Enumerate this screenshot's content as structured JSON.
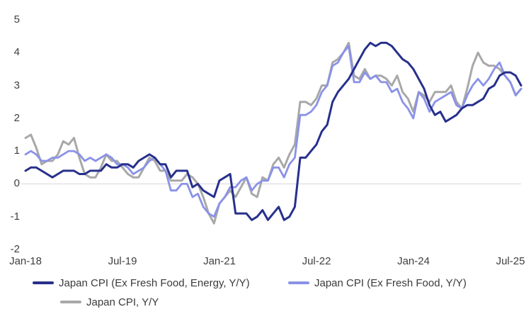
{
  "chart_data": {
    "type": "line",
    "title": "",
    "xlabel": "",
    "ylabel": "",
    "x_unit": "month",
    "x_start": "2018-01",
    "x_end": "2025-09",
    "ylim": [
      -2,
      5
    ],
    "y_ticks": [
      5,
      4,
      3,
      2,
      1,
      0,
      -1,
      -2
    ],
    "x_ticks": [
      {
        "label": "Jan-18",
        "index": 0
      },
      {
        "label": "Jul-19",
        "index": 18
      },
      {
        "label": "Jan-21",
        "index": 36
      },
      {
        "label": "Jul-22",
        "index": 54
      },
      {
        "label": "Jan-24",
        "index": 72
      },
      {
        "label": "Jul-25",
        "index": 90
      }
    ],
    "grid": "zero-line-only",
    "zero_line_color": "#d6d6d6",
    "legend_position": "bottom",
    "axis_text_color": "#3f3f3f",
    "series": [
      {
        "name": "Japan CPI (Ex Fresh Food, Energy, Y/Y)",
        "color": "#27308c",
        "line_width": 3,
        "values": [
          0.4,
          0.5,
          0.5,
          0.4,
          0.3,
          0.2,
          0.3,
          0.4,
          0.4,
          0.4,
          0.3,
          0.3,
          0.4,
          0.4,
          0.4,
          0.6,
          0.5,
          0.5,
          0.6,
          0.6,
          0.5,
          0.7,
          0.8,
          0.9,
          0.8,
          0.6,
          0.6,
          0.2,
          0.4,
          0.4,
          0.4,
          -0.1,
          0.0,
          -0.2,
          -0.3,
          -0.4,
          0.1,
          0.2,
          0.3,
          -0.9,
          -0.9,
          -0.9,
          -1.1,
          -1.0,
          -0.8,
          -1.1,
          -0.9,
          -0.7,
          -1.1,
          -1.0,
          -0.7,
          0.8,
          0.8,
          1.0,
          1.2,
          1.6,
          1.8,
          2.5,
          2.8,
          3.0,
          3.2,
          3.5,
          3.8,
          4.1,
          4.3,
          4.2,
          4.3,
          4.3,
          4.2,
          4.0,
          3.8,
          3.7,
          3.5,
          3.2,
          2.9,
          2.4,
          2.1,
          2.2,
          1.9,
          2.0,
          2.1,
          2.3,
          2.4,
          2.4,
          2.5,
          2.6,
          2.9,
          3.0,
          3.3,
          3.4,
          3.4,
          3.3,
          3.0
        ]
      },
      {
        "name": "Japan CPI (Ex Fresh Food, Y/Y)",
        "color": "#8a92e8",
        "line_width": 2.8,
        "values": [
          0.9,
          1.0,
          0.9,
          0.7,
          0.7,
          0.8,
          0.8,
          0.9,
          1.0,
          1.0,
          0.9,
          0.7,
          0.8,
          0.7,
          0.8,
          0.9,
          0.8,
          0.6,
          0.6,
          0.5,
          0.3,
          0.4,
          0.5,
          0.7,
          0.8,
          0.6,
          0.4,
          -0.2,
          -0.2,
          0.0,
          0.0,
          -0.4,
          -0.3,
          -0.7,
          -0.9,
          -1.0,
          -0.6,
          -0.4,
          -0.1,
          -0.1,
          0.1,
          0.2,
          -0.2,
          0.0,
          0.1,
          0.1,
          0.5,
          0.5,
          0.2,
          0.6,
          0.8,
          2.1,
          2.1,
          2.2,
          2.4,
          2.8,
          3.0,
          3.6,
          3.7,
          4.0,
          4.2,
          3.1,
          3.1,
          3.4,
          3.2,
          3.3,
          3.1,
          3.1,
          2.8,
          2.9,
          2.5,
          2.3,
          2.0,
          2.8,
          2.6,
          2.2,
          2.5,
          2.6,
          2.7,
          2.8,
          2.4,
          2.3,
          2.7,
          3.0,
          3.2,
          3.0,
          3.2,
          3.5,
          3.7,
          3.3,
          3.1,
          2.7,
          2.9
        ]
      },
      {
        "name": "Japan CPI, Y/Y",
        "color": "#a8a8a8",
        "line_width": 3,
        "values": [
          1.4,
          1.5,
          1.1,
          0.6,
          0.7,
          0.7,
          0.9,
          1.3,
          1.2,
          1.4,
          0.8,
          0.3,
          0.2,
          0.2,
          0.5,
          0.9,
          0.7,
          0.7,
          0.5,
          0.3,
          0.2,
          0.2,
          0.5,
          0.8,
          0.7,
          0.4,
          0.4,
          0.1,
          0.1,
          0.1,
          0.3,
          0.2,
          0.0,
          -0.4,
          -0.9,
          -1.2,
          -0.6,
          -0.4,
          -0.2,
          -0.4,
          -0.1,
          0.2,
          -0.3,
          -0.4,
          0.2,
          0.1,
          0.6,
          0.8,
          0.5,
          0.9,
          1.2,
          2.5,
          2.5,
          2.4,
          2.6,
          3.0,
          3.0,
          3.7,
          3.8,
          4.0,
          4.3,
          3.3,
          3.2,
          3.5,
          3.2,
          3.3,
          3.3,
          3.2,
          3.0,
          3.3,
          2.8,
          2.6,
          2.2,
          2.8,
          2.7,
          2.5,
          2.8,
          2.8,
          2.8,
          3.0,
          2.5,
          2.3,
          2.9,
          3.6,
          4.0,
          3.7,
          3.6,
          3.6,
          3.5,
          3.3,
          3.1,
          2.7,
          2.9
        ]
      }
    ]
  }
}
